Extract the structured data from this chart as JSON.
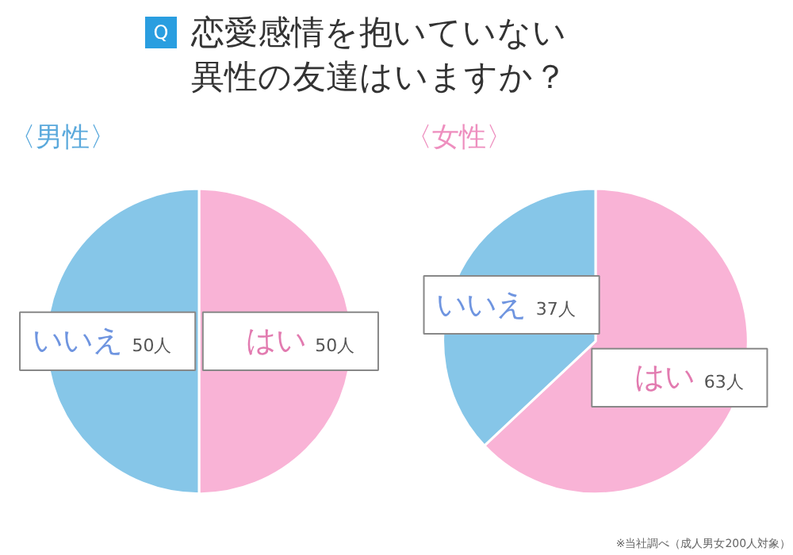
{
  "chart_data": [
    {
      "type": "pie",
      "title": "恋愛感情を抱いていない異性の友達はいますか？",
      "subtitle": "〈男性〉",
      "annotations": [
        "Q"
      ],
      "categories": [
        "はい",
        "いいえ"
      ],
      "values": [
        50,
        50
      ],
      "value_labels": [
        "50人",
        "50人"
      ],
      "colors": [
        "#f9b3d6",
        "#86c6e8"
      ]
    },
    {
      "type": "pie",
      "subtitle": "〈女性〉",
      "annotations": [
        "※当社調べ（成人男女200人対象）"
      ],
      "categories": [
        "はい",
        "いいえ"
      ],
      "values": [
        63,
        37
      ],
      "value_labels": [
        "63人",
        "37人"
      ],
      "colors": [
        "#f9b3d6",
        "#86c6e8"
      ]
    }
  ]
}
